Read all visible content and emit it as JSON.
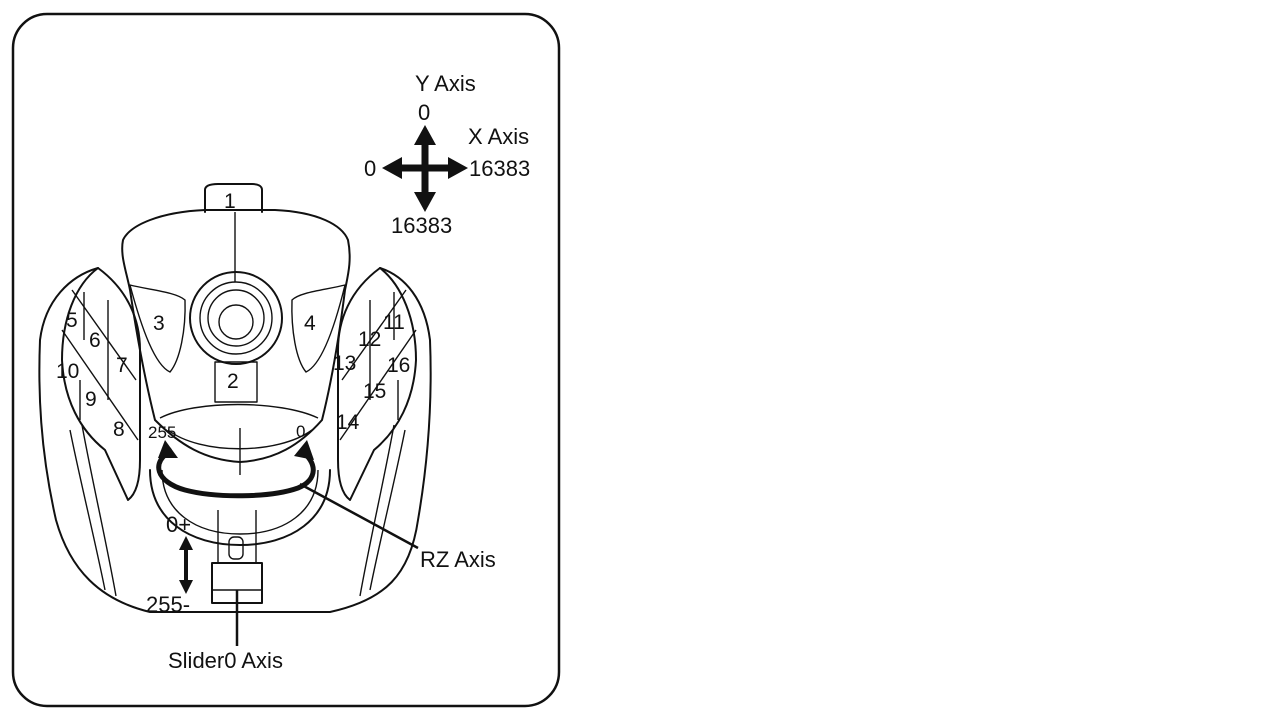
{
  "buttons": {
    "b1": "1",
    "b2": "2",
    "b3": "3",
    "b4": "4",
    "b5": "5",
    "b6": "6",
    "b7": "7",
    "b8": "8",
    "b9": "9",
    "b10": "10",
    "b11": "11",
    "b12": "12",
    "b13": "13",
    "b14": "14",
    "b15": "15",
    "b16": "16"
  },
  "axes": {
    "y_axis_title": "Y Axis",
    "y_min": "0",
    "y_max": "16383",
    "x_axis_title": "X Axis",
    "x_min": "0",
    "x_max": "16383",
    "rz_left": "255",
    "rz_right": "0",
    "rz_axis_title": "RZ Axis",
    "slider_top": "0+",
    "slider_bottom": "255-",
    "slider_axis_title": "Slider0 Axis"
  },
  "icons": [
    "axis-cross-arrows-icon",
    "rz-rotation-arrow-icon",
    "slider-double-arrow-icon"
  ]
}
